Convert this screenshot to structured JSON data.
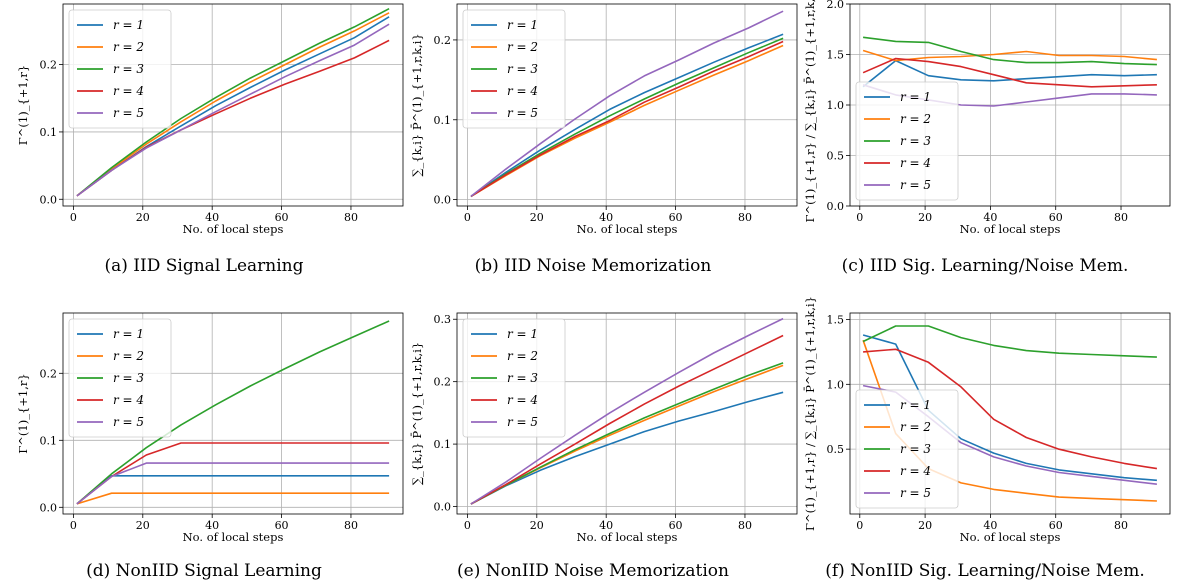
{
  "chart_data": [
    {
      "id": "a",
      "type": "line",
      "caption": "(a) IID Signal Learning",
      "ylabel": "Γ^(1)_{+1,r}",
      "xlabel": "No. of local steps",
      "xlim": [
        -3,
        95
      ],
      "ylim": [
        -0.01,
        0.29
      ],
      "xticks": [
        0,
        20,
        40,
        60,
        80
      ],
      "yticks": [
        0.0,
        0.1,
        0.2
      ],
      "ytick_labels": [
        "0.0",
        "0.1",
        "0.2"
      ],
      "legend_position": "upper-left",
      "x": [
        1,
        11,
        21,
        31,
        41,
        51,
        61,
        71,
        81,
        91
      ],
      "series": [
        {
          "name": "r = 1",
          "color": "#1f77b4",
          "values": [
            0.005,
            0.043,
            0.078,
            0.109,
            0.139,
            0.166,
            0.192,
            0.216,
            0.24,
            0.271
          ]
        },
        {
          "name": "r = 2",
          "color": "#ff7f0e",
          "values": [
            0.005,
            0.045,
            0.082,
            0.115,
            0.146,
            0.174,
            0.2,
            0.226,
            0.25,
            0.277
          ]
        },
        {
          "name": "r = 3",
          "color": "#2ca02c",
          "values": [
            0.005,
            0.047,
            0.085,
            0.12,
            0.151,
            0.18,
            0.206,
            0.232,
            0.256,
            0.283
          ]
        },
        {
          "name": "r = 4",
          "color": "#d62728",
          "values": [
            0.005,
            0.043,
            0.077,
            0.103,
            0.127,
            0.15,
            0.171,
            0.19,
            0.21,
            0.236
          ]
        },
        {
          "name": "r = 5",
          "color": "#9467bd",
          "values": [
            0.005,
            0.043,
            0.076,
            0.103,
            0.13,
            0.156,
            0.182,
            0.206,
            0.229,
            0.26
          ]
        }
      ]
    },
    {
      "id": "b",
      "type": "line",
      "caption": "(b) IID Noise Memorization",
      "ylabel": "∑_{k,i} P̄^(1)_{+1,r,k,i}",
      "xlabel": "No. of local steps",
      "xlim": [
        -3,
        95
      ],
      "ylim": [
        -0.008,
        0.245
      ],
      "xticks": [
        0,
        20,
        40,
        60,
        80
      ],
      "yticks": [
        0.0,
        0.1,
        0.2
      ],
      "ytick_labels": [
        "0.0",
        "0.1",
        "0.2"
      ],
      "legend_position": "upper-left",
      "x": [
        1,
        11,
        21,
        31,
        41,
        51,
        61,
        71,
        81,
        91
      ],
      "series": [
        {
          "name": "r = 1",
          "color": "#1f77b4",
          "values": [
            0.004,
            0.034,
            0.062,
            0.088,
            0.113,
            0.134,
            0.153,
            0.172,
            0.19,
            0.207
          ]
        },
        {
          "name": "r = 2",
          "color": "#ff7f0e",
          "values": [
            0.004,
            0.03,
            0.055,
            0.077,
            0.097,
            0.118,
            0.137,
            0.156,
            0.174,
            0.193
          ]
        },
        {
          "name": "r = 3",
          "color": "#2ca02c",
          "values": [
            0.004,
            0.032,
            0.058,
            0.082,
            0.105,
            0.126,
            0.146,
            0.165,
            0.184,
            0.202
          ]
        },
        {
          "name": "r = 4",
          "color": "#d62728",
          "values": [
            0.004,
            0.031,
            0.056,
            0.079,
            0.099,
            0.122,
            0.141,
            0.161,
            0.179,
            0.198
          ]
        },
        {
          "name": "r = 5",
          "color": "#9467bd",
          "values": [
            0.004,
            0.038,
            0.07,
            0.101,
            0.13,
            0.155,
            0.175,
            0.196,
            0.215,
            0.236
          ]
        }
      ]
    },
    {
      "id": "c",
      "type": "line",
      "caption": "(c) IID Sig. Learning/Noise Mem.",
      "ylabel": "Γ^(1)_{+1,r} / ∑_{k,i} P̄^(1)_{+1,r,k,i}",
      "xlabel": "No. of local steps",
      "xlim": [
        -3,
        95
      ],
      "ylim": [
        0.0,
        2.0
      ],
      "xticks": [
        0,
        20,
        40,
        60,
        80
      ],
      "yticks": [
        0.0,
        0.5,
        1.0,
        1.5,
        2.0
      ],
      "ytick_labels": [
        "0.0",
        "0.5",
        "1.0",
        "1.5",
        "2.0"
      ],
      "legend_position": "lower-left",
      "x": [
        1,
        11,
        21,
        31,
        41,
        51,
        61,
        71,
        81,
        91
      ],
      "series": [
        {
          "name": "r = 1",
          "color": "#1f77b4",
          "values": [
            1.18,
            1.44,
            1.29,
            1.25,
            1.24,
            1.26,
            1.28,
            1.3,
            1.29,
            1.3
          ]
        },
        {
          "name": "r = 2",
          "color": "#ff7f0e",
          "values": [
            1.54,
            1.44,
            1.47,
            1.48,
            1.5,
            1.53,
            1.49,
            1.49,
            1.48,
            1.45
          ]
        },
        {
          "name": "r = 3",
          "color": "#2ca02c",
          "values": [
            1.67,
            1.63,
            1.62,
            1.53,
            1.45,
            1.42,
            1.42,
            1.43,
            1.41,
            1.4
          ]
        },
        {
          "name": "r = 4",
          "color": "#d62728",
          "values": [
            1.32,
            1.46,
            1.43,
            1.38,
            1.3,
            1.22,
            1.2,
            1.18,
            1.19,
            1.2
          ]
        },
        {
          "name": "r = 5",
          "color": "#9467bd",
          "values": [
            1.2,
            1.1,
            1.05,
            1.0,
            0.99,
            1.03,
            1.07,
            1.11,
            1.11,
            1.1
          ]
        }
      ]
    },
    {
      "id": "d",
      "type": "line",
      "caption": "(d) NonIID Signal Learning",
      "ylabel": "Γ^(1)_{+1,r}",
      "xlabel": "No. of local steps",
      "xlim": [
        -3,
        95
      ],
      "ylim": [
        -0.01,
        0.29
      ],
      "xticks": [
        0,
        20,
        40,
        60,
        80
      ],
      "yticks": [
        0.0,
        0.1,
        0.2
      ],
      "ytick_labels": [
        "0.0",
        "0.1",
        "0.2"
      ],
      "legend_position": "upper-left",
      "x": [
        1,
        11,
        21,
        31,
        41,
        51,
        61,
        71,
        81,
        91
      ],
      "series": [
        {
          "name": "r = 1",
          "color": "#1f77b4",
          "values": [
            0.005,
            0.047,
            0.047,
            0.047,
            0.047,
            0.047,
            0.047,
            0.047,
            0.047,
            0.047
          ]
        },
        {
          "name": "r = 2",
          "color": "#ff7f0e",
          "values": [
            0.005,
            0.021,
            0.021,
            0.021,
            0.021,
            0.021,
            0.021,
            0.021,
            0.021,
            0.021
          ]
        },
        {
          "name": "r = 3",
          "color": "#2ca02c",
          "values": [
            0.005,
            0.05,
            0.089,
            0.123,
            0.153,
            0.181,
            0.207,
            0.232,
            0.255,
            0.278
          ]
        },
        {
          "name": "r = 4",
          "color": "#d62728",
          "values": [
            0.005,
            0.046,
            0.078,
            0.096,
            0.096,
            0.096,
            0.096,
            0.096,
            0.096,
            0.096
          ]
        },
        {
          "name": "r = 5",
          "color": "#9467bd",
          "values": [
            0.005,
            0.046,
            0.066,
            0.066,
            0.066,
            0.066,
            0.066,
            0.066,
            0.066,
            0.066
          ]
        }
      ]
    },
    {
      "id": "e",
      "type": "line",
      "caption": "(e) NonIID Noise Memorization",
      "ylabel": "∑_{k,i} P̄^(1)_{+1,r,k,i}",
      "xlabel": "No. of local steps",
      "xlim": [
        -3,
        95
      ],
      "ylim": [
        -0.012,
        0.31
      ],
      "xticks": [
        0,
        20,
        40,
        60,
        80
      ],
      "yticks": [
        0.0,
        0.1,
        0.2,
        0.3
      ],
      "ytick_labels": [
        "0.0",
        "0.1",
        "0.2",
        "0.3"
      ],
      "legend_position": "upper-left",
      "x": [
        1,
        11,
        21,
        31,
        41,
        51,
        61,
        71,
        81,
        91
      ],
      "series": [
        {
          "name": "r = 1",
          "color": "#1f77b4",
          "values": [
            0.004,
            0.033,
            0.058,
            0.08,
            0.1,
            0.12,
            0.137,
            0.152,
            0.168,
            0.183
          ]
        },
        {
          "name": "r = 2",
          "color": "#ff7f0e",
          "values": [
            0.004,
            0.034,
            0.062,
            0.089,
            0.114,
            0.138,
            0.161,
            0.184,
            0.205,
            0.226
          ]
        },
        {
          "name": "r = 3",
          "color": "#2ca02c",
          "values": [
            0.004,
            0.034,
            0.063,
            0.091,
            0.117,
            0.142,
            0.165,
            0.188,
            0.21,
            0.23
          ]
        },
        {
          "name": "r = 4",
          "color": "#d62728",
          "values": [
            0.004,
            0.035,
            0.068,
            0.1,
            0.133,
            0.164,
            0.193,
            0.22,
            0.247,
            0.274
          ]
        },
        {
          "name": "r = 5",
          "color": "#9467bd",
          "values": [
            0.004,
            0.039,
            0.077,
            0.114,
            0.15,
            0.183,
            0.215,
            0.246,
            0.274,
            0.301
          ]
        }
      ]
    },
    {
      "id": "f",
      "type": "line",
      "caption": "(f) NonIID Sig. Learning/Noise Mem.",
      "ylabel": "Γ^(1)_{+1,r} / ∑_{k,i} P̄^(1)_{+1,r,k,i}",
      "xlabel": "No. of local steps",
      "xlim": [
        -3,
        95
      ],
      "ylim": [
        0.0,
        1.55
      ],
      "xticks": [
        0,
        20,
        40,
        60,
        80
      ],
      "yticks": [
        0.5,
        1.0,
        1.5
      ],
      "ytick_labels": [
        "0.5",
        "1.0",
        "1.5"
      ],
      "legend_position": "lower-left",
      "x": [
        1,
        11,
        21,
        31,
        41,
        51,
        61,
        71,
        81,
        91
      ],
      "series": [
        {
          "name": "r = 1",
          "color": "#1f77b4",
          "values": [
            1.38,
            1.31,
            0.8,
            0.58,
            0.47,
            0.39,
            0.34,
            0.31,
            0.28,
            0.26
          ]
        },
        {
          "name": "r = 2",
          "color": "#ff7f0e",
          "values": [
            1.34,
            0.62,
            0.35,
            0.24,
            0.19,
            0.16,
            0.13,
            0.12,
            0.11,
            0.1
          ]
        },
        {
          "name": "r = 3",
          "color": "#2ca02c",
          "values": [
            1.33,
            1.45,
            1.45,
            1.36,
            1.3,
            1.26,
            1.24,
            1.23,
            1.22,
            1.21
          ]
        },
        {
          "name": "r = 4",
          "color": "#d62728",
          "values": [
            1.25,
            1.27,
            1.17,
            0.98,
            0.73,
            0.59,
            0.5,
            0.44,
            0.39,
            0.35
          ]
        },
        {
          "name": "r = 5",
          "color": "#9467bd",
          "values": [
            0.99,
            0.94,
            0.75,
            0.55,
            0.44,
            0.37,
            0.32,
            0.29,
            0.26,
            0.23
          ]
        }
      ]
    }
  ]
}
